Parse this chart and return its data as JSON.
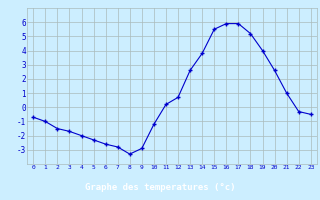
{
  "hours": [
    0,
    1,
    2,
    3,
    4,
    5,
    6,
    7,
    8,
    9,
    10,
    11,
    12,
    13,
    14,
    15,
    16,
    17,
    18,
    19,
    20,
    21,
    22,
    23
  ],
  "temps": [
    -0.7,
    -1.0,
    -1.5,
    -1.7,
    -2.0,
    -2.3,
    -2.6,
    -2.8,
    -3.3,
    -2.9,
    -1.2,
    0.2,
    0.7,
    2.6,
    3.8,
    5.5,
    5.9,
    5.9,
    5.2,
    4.0,
    2.6,
    1.0,
    -0.3,
    -0.5
  ],
  "xlabel": "Graphe des temperatures (°c)",
  "xlim": [
    -0.5,
    23.5
  ],
  "ylim": [
    -4.0,
    7.0
  ],
  "yticks": [
    -3,
    -2,
    -1,
    0,
    1,
    2,
    3,
    4,
    5,
    6
  ],
  "xticks": [
    0,
    1,
    2,
    3,
    4,
    5,
    6,
    7,
    8,
    9,
    10,
    11,
    12,
    13,
    14,
    15,
    16,
    17,
    18,
    19,
    20,
    21,
    22,
    23
  ],
  "line_color": "#0000cc",
  "marker": "+",
  "bg_color": "#cceeff",
  "grid_color": "#aabbbb",
  "label_bg": "#0000cc",
  "label_fg": "#ffffff",
  "tick_color": "#0000cc"
}
